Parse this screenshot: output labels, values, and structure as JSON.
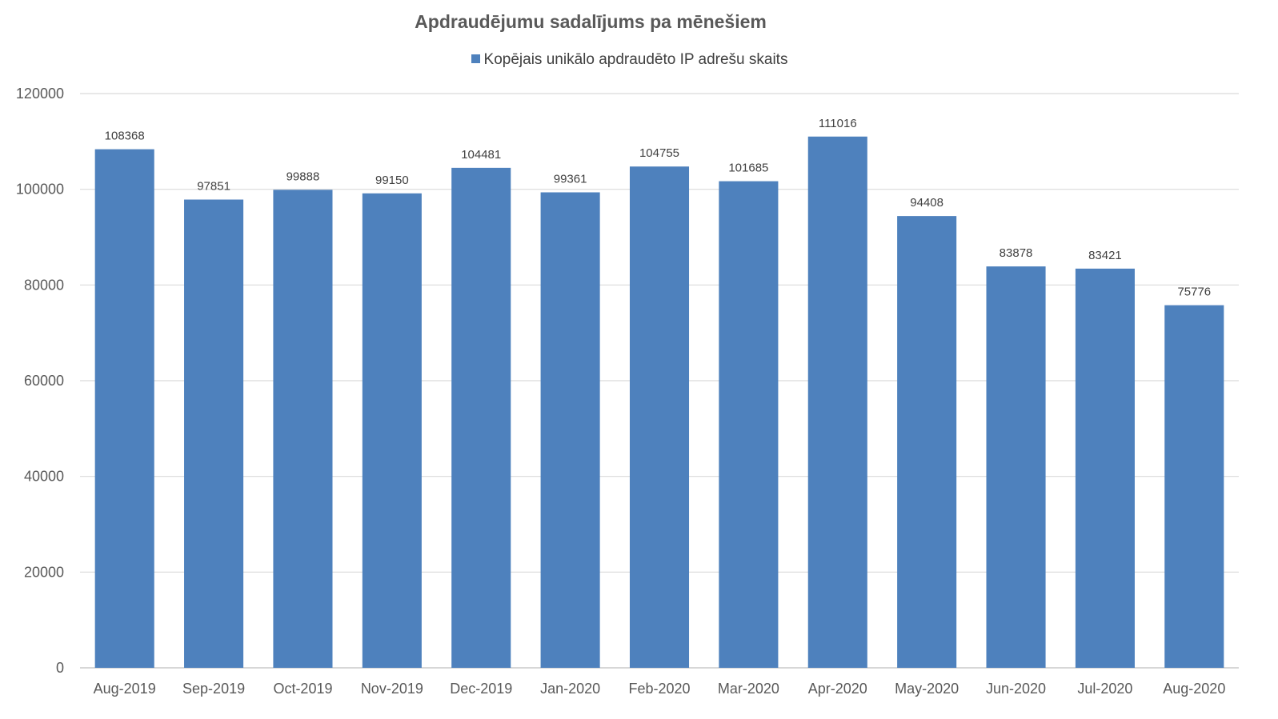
{
  "chart_data": {
    "type": "bar",
    "title": "Apdraudējumu sadalījums pa mēnešiem",
    "legend_position": "top",
    "grid": true,
    "ylim": [
      0,
      120000
    ],
    "yticks": [
      "0",
      "20000",
      "40000",
      "60000",
      "80000",
      "100000",
      "120000"
    ],
    "categories": [
      "Aug-2019",
      "Sep-2019",
      "Oct-2019",
      "Nov-2019",
      "Dec-2019",
      "Jan-2020",
      "Feb-2020",
      "Mar-2020",
      "Apr-2020",
      "May-2020",
      "Jun-2020",
      "Jul-2020",
      "Aug-2020"
    ],
    "series": [
      {
        "name": "Kopējais unikālo apdraudēto IP adrešu skaits",
        "color": "#4e81bd",
        "values": [
          108368,
          97851,
          99888,
          99150,
          104481,
          99361,
          104755,
          101685,
          111016,
          94408,
          83878,
          83421,
          75776
        ]
      }
    ]
  }
}
